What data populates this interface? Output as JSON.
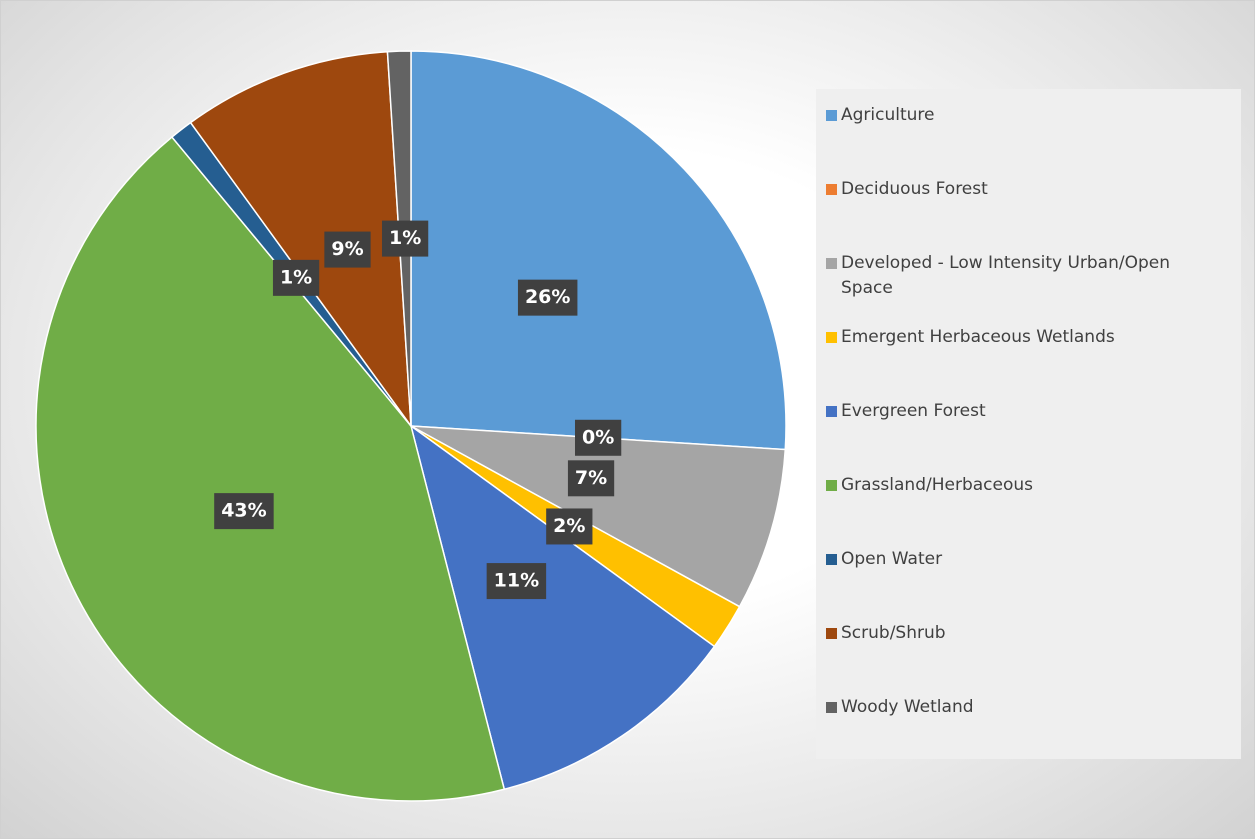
{
  "chart_data": {
    "type": "pie",
    "categories": [
      "Agriculture",
      "Deciduous Forest",
      "Developed - Low Intensity Urban/Open Space",
      "Emergent Herbaceous Wetlands",
      "Evergreen Forest",
      "Grassland/Herbaceous",
      "Open Water",
      "Scrub/Shrub",
      "Woody Wetland"
    ],
    "values": [
      26,
      0,
      7,
      2,
      11,
      43,
      1,
      9,
      1
    ],
    "value_labels": [
      "26%",
      "0%",
      "7%",
      "2%",
      "11%",
      "43%",
      "1%",
      "9%",
      "1%"
    ],
    "colors": [
      "#5b9bd5",
      "#ed7d31",
      "#a5a5a5",
      "#ffc000",
      "#4472c4",
      "#70ad47",
      "#255e91",
      "#9e480e",
      "#636363"
    ],
    "legend": "right"
  }
}
